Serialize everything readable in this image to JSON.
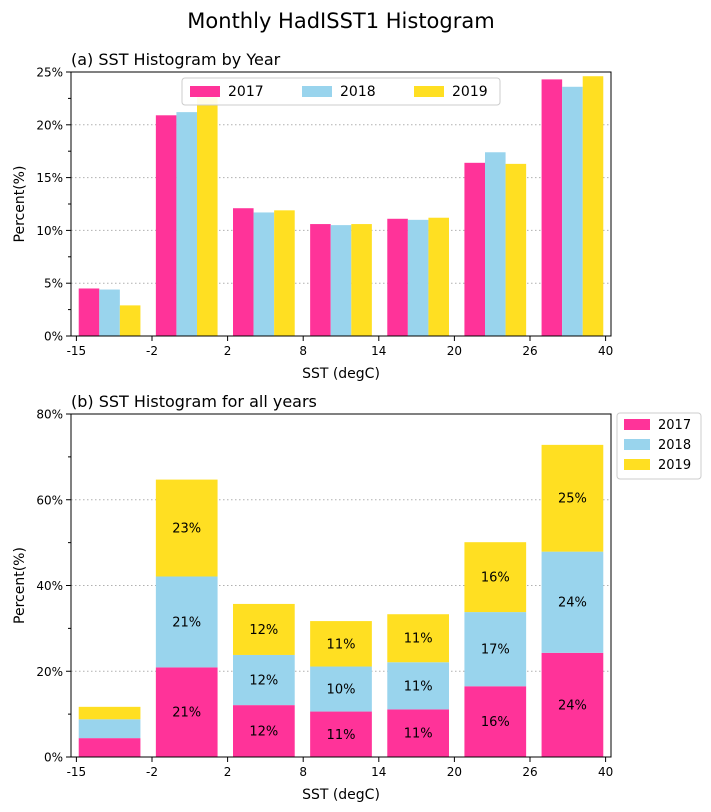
{
  "figure_title": "Monthly HadISST1 Histogram",
  "colors": {
    "2017": "#ff3399",
    "2018": "#99d4ed",
    "2019": "#ffdf22"
  },
  "chart_data": [
    {
      "type": "bar",
      "title": "(a) SST Histogram by Year",
      "xlabel": "SST (degC)",
      "ylabel": "Percent(%)",
      "categories": [
        "-15 to -2",
        "-2 to 2",
        "2 to 8",
        "8 to 14",
        "14 to 20",
        "20 to 26",
        "26 to 40"
      ],
      "x_tick_labels": [
        "-15",
        "-2",
        "2",
        "8",
        "14",
        "20",
        "26",
        "40"
      ],
      "y_tick_labels": [
        "0%",
        "5%",
        "10%",
        "15%",
        "20%",
        "25%"
      ],
      "ylim": [
        0,
        25
      ],
      "grid": "y dotted",
      "legend_position": "upper center",
      "series": [
        {
          "name": "2017",
          "values": [
            4.5,
            20.9,
            12.1,
            10.6,
            11.1,
            16.4,
            24.3
          ]
        },
        {
          "name": "2018",
          "values": [
            4.4,
            21.2,
            11.7,
            10.5,
            11.0,
            17.4,
            23.6
          ]
        },
        {
          "name": "2019",
          "values": [
            2.9,
            22.6,
            11.9,
            10.6,
            11.2,
            16.3,
            24.6
          ]
        }
      ]
    },
    {
      "type": "bar",
      "stacked": true,
      "title": "(b) SST Histogram for all years",
      "xlabel": "SST (degC)",
      "ylabel": "Percent(%)",
      "categories": [
        "-15 to -2",
        "-2 to 2",
        "2 to 8",
        "8 to 14",
        "14 to 20",
        "20 to 26",
        "26 to 40"
      ],
      "x_tick_labels": [
        "-15",
        "-2",
        "2",
        "8",
        "14",
        "20",
        "26",
        "40"
      ],
      "y_tick_labels": [
        "0%",
        "20%",
        "40%",
        "60%",
        "80%"
      ],
      "ylim": [
        0,
        80
      ],
      "grid": "y dotted",
      "legend_position": "outside upper right",
      "series": [
        {
          "name": "2017",
          "values": [
            4.4,
            20.9,
            12.1,
            10.6,
            11.1,
            16.5,
            24.3
          ],
          "labels": [
            "",
            "21%",
            "12%",
            "11%",
            "11%",
            "16%",
            "24%"
          ]
        },
        {
          "name": "2018",
          "values": [
            4.4,
            21.2,
            11.7,
            10.5,
            11.0,
            17.3,
            23.6
          ],
          "labels": [
            "",
            "21%",
            "12%",
            "10%",
            "11%",
            "17%",
            "24%"
          ]
        },
        {
          "name": "2019",
          "values": [
            2.9,
            22.6,
            11.9,
            10.6,
            11.2,
            16.3,
            24.9
          ],
          "labels": [
            "",
            "23%",
            "12%",
            "11%",
            "11%",
            "16%",
            "25%"
          ]
        }
      ]
    }
  ]
}
